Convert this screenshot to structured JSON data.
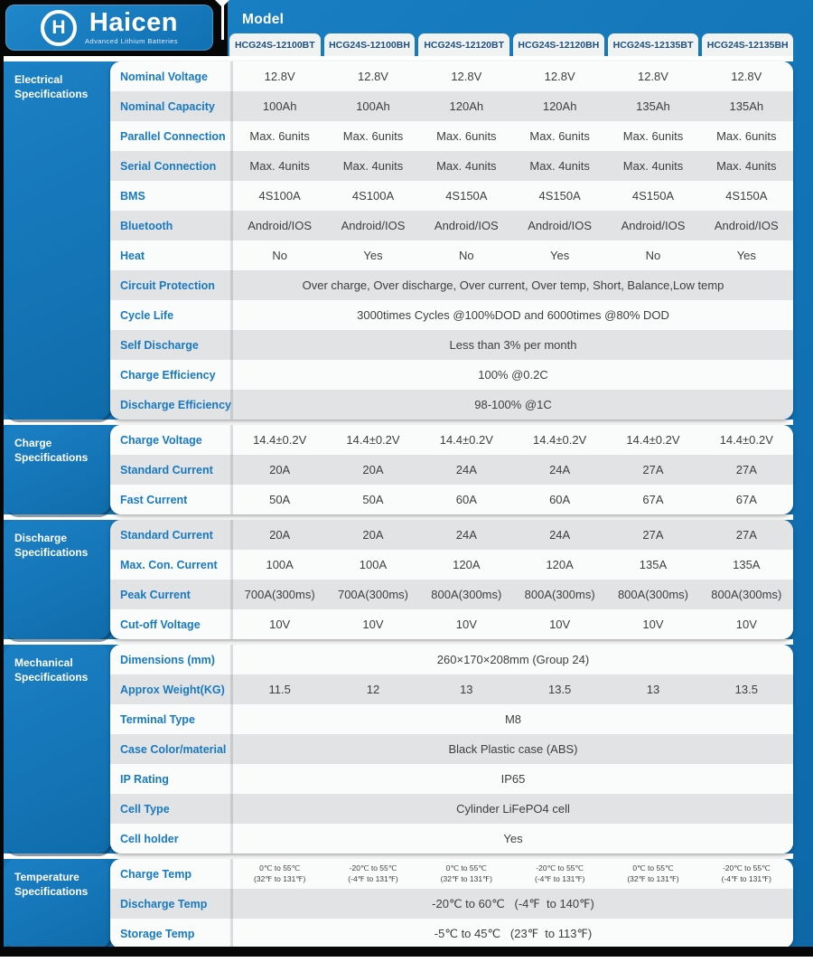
{
  "brand": {
    "name": "Haicen",
    "tagline": "Advanced Lithium Batteries",
    "logo_letter": "H"
  },
  "header": {
    "model_label": "Model",
    "models": [
      "HCG24S-12100BT",
      "HCG24S-12100BH",
      "HCG24S-12120BT",
      "HCG24S-12120BH",
      "HCG24S-12135BT",
      "HCG24S-12135BH"
    ]
  },
  "colors": {
    "blue": "#1173b5",
    "blue_light": "#1b82c6",
    "blue_dark": "#0e68a8",
    "label_blue": "#1879c0",
    "tab_text": "#1c5181",
    "stripe_gray": "#e2e3e4",
    "panel_bg": "#fafbfb",
    "value_text": "#3e3e3e",
    "black": "#070707"
  },
  "sections": [
    {
      "id": "electrical-specifications",
      "title_lines": [
        "Electrical",
        "Specifications"
      ],
      "zebra_start_shaded": false,
      "rows": [
        {
          "label": "Nominal Voltage",
          "type": "cols",
          "values": [
            "12.8V",
            "12.8V",
            "12.8V",
            "12.8V",
            "12.8V",
            "12.8V"
          ]
        },
        {
          "label": "Nominal Capacity",
          "type": "cols",
          "values": [
            "100Ah",
            "100Ah",
            "120Ah",
            "120Ah",
            "135Ah",
            "135Ah"
          ]
        },
        {
          "label": "Parallel Connection",
          "type": "cols",
          "values": [
            "Max. 6units",
            "Max. 6units",
            "Max. 6units",
            "Max. 6units",
            "Max. 6units",
            "Max. 6units"
          ]
        },
        {
          "label": "Serial Connection",
          "type": "cols",
          "values": [
            "Max. 4units",
            "Max. 4units",
            "Max. 4units",
            "Max. 4units",
            "Max. 4units",
            "Max. 4units"
          ]
        },
        {
          "label": "BMS",
          "type": "cols",
          "values": [
            "4S100A",
            "4S100A",
            "4S150A",
            "4S150A",
            "4S150A",
            "4S150A"
          ]
        },
        {
          "label": "Bluetooth",
          "type": "cols",
          "values": [
            "Android/IOS",
            "Android/IOS",
            "Android/IOS",
            "Android/IOS",
            "Android/IOS",
            "Android/IOS"
          ]
        },
        {
          "label": "Heat",
          "type": "cols",
          "values": [
            "No",
            "Yes",
            "No",
            "Yes",
            "No",
            "Yes"
          ]
        },
        {
          "label": "Circuit Protection",
          "type": "span",
          "value": "Over charge, Over discharge, Over current, Over temp, Short, Balance,Low temp"
        },
        {
          "label": "Cycle Life",
          "type": "span",
          "value": "3000times Cycles @100%DOD and 6000times @80% DOD"
        },
        {
          "label": "Self Discharge",
          "type": "span",
          "value": "Less than 3% per month"
        },
        {
          "label": "Charge Efficiency",
          "type": "span",
          "value": "100% @0.2C"
        },
        {
          "label": "Discharge Efficiency",
          "type": "span",
          "value": "98-100% @1C"
        }
      ]
    },
    {
      "id": "charge-specifications",
      "title_lines": [
        "Charge",
        "Specifications"
      ],
      "zebra_start_shaded": false,
      "rows": [
        {
          "label": "Charge Voltage",
          "type": "cols",
          "values": [
            "14.4±0.2V",
            "14.4±0.2V",
            "14.4±0.2V",
            "14.4±0.2V",
            "14.4±0.2V",
            "14.4±0.2V"
          ]
        },
        {
          "label": "Standard Current",
          "type": "cols",
          "values": [
            "20A",
            "20A",
            "24A",
            "24A",
            "27A",
            "27A"
          ]
        },
        {
          "label": "Fast Current",
          "type": "cols",
          "values": [
            "50A",
            "50A",
            "60A",
            "60A",
            "67A",
            "67A"
          ]
        }
      ]
    },
    {
      "id": "discharge-specifications",
      "title_lines": [
        "Discharge",
        "Specifications"
      ],
      "zebra_start_shaded": true,
      "rows": [
        {
          "label": "Standard Current",
          "type": "cols",
          "values": [
            "20A",
            "20A",
            "24A",
            "24A",
            "27A",
            "27A"
          ]
        },
        {
          "label": "Max. Con. Current",
          "type": "cols",
          "values": [
            "100A",
            "100A",
            "120A",
            "120A",
            "135A",
            "135A"
          ]
        },
        {
          "label": "Peak Current",
          "type": "cols",
          "values": [
            "700A(300ms)",
            "700A(300ms)",
            "800A(300ms)",
            "800A(300ms)",
            "800A(300ms)",
            "800A(300ms)"
          ]
        },
        {
          "label": "Cut-off Voltage",
          "type": "cols",
          "values": [
            "10V",
            "10V",
            "10V",
            "10V",
            "10V",
            "10V"
          ]
        }
      ]
    },
    {
      "id": "mechanical-specifications",
      "title_lines": [
        "Mechanical",
        "Specifications"
      ],
      "zebra_start_shaded": false,
      "rows": [
        {
          "label": "Dimensions (mm)",
          "type": "span",
          "value": "260×170×208mm (Group 24)"
        },
        {
          "label": "Approx Weight(KG)",
          "type": "cols",
          "values": [
            "11.5",
            "12",
            "13",
            "13.5",
            "13",
            "13.5"
          ]
        },
        {
          "label": "Terminal Type",
          "type": "span",
          "value": "M8"
        },
        {
          "label": "Case Color/material",
          "type": "span",
          "value": "Black Plastic case (ABS)"
        },
        {
          "label": "IP Rating",
          "type": "span",
          "value": "IP65"
        },
        {
          "label": "Cell Type",
          "type": "span",
          "value": "Cylinder LiFePO4 cell"
        },
        {
          "label": "Cell holder",
          "type": "span",
          "value": "Yes"
        }
      ]
    },
    {
      "id": "temperature-specifications",
      "title_lines": [
        "Temperature",
        "Specifications"
      ],
      "zebra_start_shaded": false,
      "rows": [
        {
          "label": "Charge Temp",
          "type": "cols2",
          "values": [
            [
              "0℃ to 55℃",
              "(32℉ to 131℉)"
            ],
            [
              "-20℃ to 55℃",
              "(-4℉ to 131℉)"
            ],
            [
              "0℃ to 55℃",
              "(32℉ to 131℉)"
            ],
            [
              "-20℃ to 55℃",
              "(-4℉ to 131℉)"
            ],
            [
              "0℃ to 55℃",
              "(32℉ to 131℉)"
            ],
            [
              "-20℃ to 55℃",
              "(-4℉ to 131℉)"
            ]
          ]
        },
        {
          "label": "Discharge Temp",
          "type": "span",
          "value": "-20℃ to 60℃   (-4℉  to 140℉)"
        },
        {
          "label": "Storage Temp",
          "type": "span",
          "value": "-5℃ to 45℃   (23℉  to 113℉)"
        }
      ]
    }
  ]
}
